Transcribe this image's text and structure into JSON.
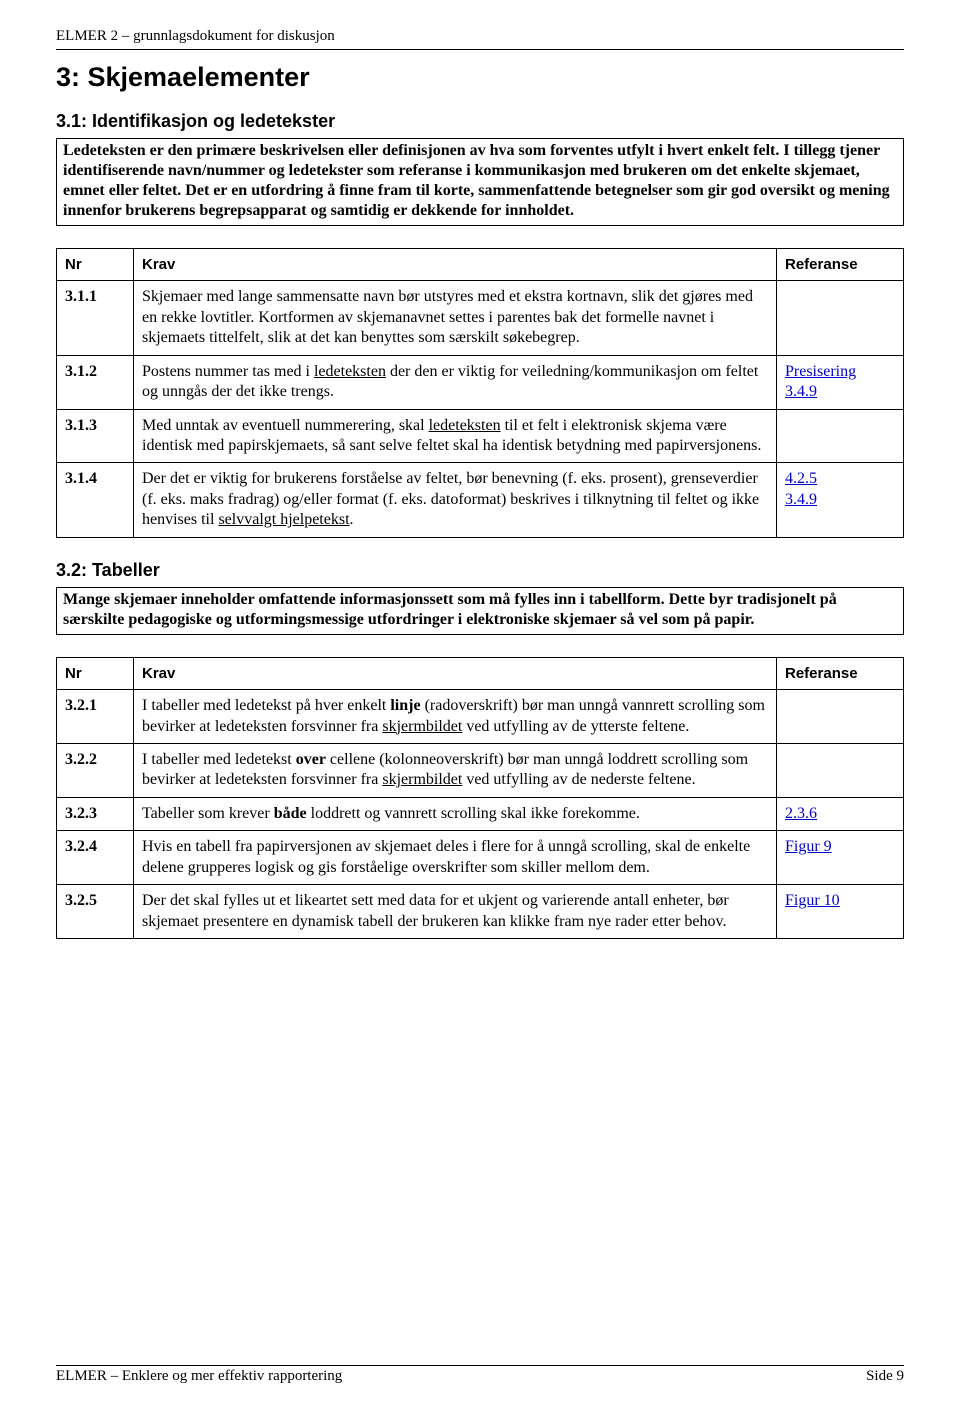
{
  "header": "ELMER 2 – grunnlagsdokument for diskusjon",
  "section_title": "3: Skjemaelementer",
  "sub31": {
    "title": "3.1: Identifikasjon og ledetekster",
    "intro_html": "<b>Ledeteksten er den primære beskrivelsen eller definisjonen av hva som forventes utfylt i hvert enkelt felt. I tillegg tjener identifiserende navn/nummer og ledetekster som referanse i kommunikasjon med brukeren om det enkelte skjemaet, emnet eller feltet. Det er en utfordring å finne fram til korte, sammenfattende betegnelser som gir god oversikt og mening innenfor brukerens begrepsapparat og samtidig er dekkende for innholdet.</b>",
    "cols": {
      "nr": "Nr",
      "krav": "Krav",
      "ref": "Referanse"
    },
    "rows": [
      {
        "nr": "3.1.1",
        "krav_html": "Skjemaer med lange sammensatte navn bør utstyres med et ekstra kortnavn, slik det gjøres med en rekke lovtitler. Kortformen av skjemanavnet settes i parentes bak det formelle navnet i skjemaets tittelfelt, slik at det kan benyttes som særskilt søkebegrep.",
        "ref_html": ""
      },
      {
        "nr": "3.1.2",
        "krav_html": "Postens nummer tas med i <span class=\"u\">ledeteksten</span> der den er viktig for veiledning/kommunikasjon om feltet og unngås der det ikke trengs.",
        "ref_html": "<span class=\"ref-link\" data-name=\"link-presisering\" data-interactable=\"true\">Presisering</span><br><span class=\"ref-link\" data-name=\"link-3-4-9\" data-interactable=\"true\">3.4.9</span>"
      },
      {
        "nr": "3.1.3",
        "krav_html": "Med unntak av eventuell nummerering, skal <span class=\"u\">ledeteksten</span> til et felt i elektronisk skjema være identisk med papirskjemaets, så sant selve feltet skal ha identisk betydning med papirversjonens.",
        "ref_html": ""
      },
      {
        "nr": "3.1.4",
        "krav_html": "Der det er viktig for brukerens forståelse av feltet, bør benevning (f. eks. prosent), grenseverdier (f. eks. maks fradrag) og/eller format (f. eks. datoformat) beskrives i tilknytning til feltet og ikke henvises til <span class=\"u\">selvvalgt hjelpetekst</span>.",
        "ref_html": "<span class=\"ref-link\" data-name=\"link-4-2-5\" data-interactable=\"true\">4.2.5</span><br><span class=\"ref-link\" data-name=\"link-3-4-9-b\" data-interactable=\"true\">3.4.9</span>"
      }
    ]
  },
  "sub32": {
    "title": "3.2: Tabeller",
    "intro_html": "<b>Mange skjemaer inneholder omfattende informasjonssett som må fylles inn i tabellform. Dette byr tradisjonelt på særskilte pedagogiske og utformingsmessige utfordringer i elektroniske skjemaer så vel som på papir.</b>",
    "cols": {
      "nr": "Nr",
      "krav": "Krav",
      "ref": "Referanse"
    },
    "rows": [
      {
        "nr": "3.2.1",
        "krav_html": "I tabeller med ledetekst på hver enkelt <b>linje</b> (radoverskrift) bør man unngå vannrett scrolling som bevirker at ledeteksten forsvinner fra <span class=\"u\">skjermbildet</span> ved utfylling av de ytterste feltene.",
        "ref_html": ""
      },
      {
        "nr": "3.2.2",
        "krav_html": "I tabeller med ledetekst <b>over</b> cellene (kolonneoverskrift) bør man unngå loddrett scrolling som bevirker at ledeteksten forsvinner fra <span class=\"u\">skjermbildet</span> ved utfylling av de nederste feltene.",
        "ref_html": ""
      },
      {
        "nr": "3.2.3",
        "krav_html": "Tabeller som krever <b>både</b> loddrett og vannrett scrolling skal ikke forekomme.",
        "ref_html": "<span class=\"ref-link\" data-name=\"link-2-3-6\" data-interactable=\"true\">2.3.6</span>"
      },
      {
        "nr": "3.2.4",
        "krav_html": "Hvis en tabell fra papirversjonen av skjemaet deles i flere for å unngå scrolling, skal de enkelte delene grupperes logisk og gis forståelige overskrifter som skiller mellom dem.",
        "ref_html": "<span class=\"ref-link\" data-name=\"link-figur-9\" data-interactable=\"true\">Figur 9</span>"
      },
      {
        "nr": "3.2.5",
        "krav_html": "Der det skal fylles ut et likeartet sett med data for et ukjent og varierende antall enheter, bør skjemaet presentere en dynamisk tabell der brukeren kan klikke fram nye rader etter behov.",
        "ref_html": "<span class=\"ref-link\" data-name=\"link-figur-10\" data-interactable=\"true\">Figur 10</span>"
      }
    ]
  },
  "footer": {
    "left": "ELMER – Enklere og mer effektiv rapportering",
    "right": "Side 9"
  }
}
